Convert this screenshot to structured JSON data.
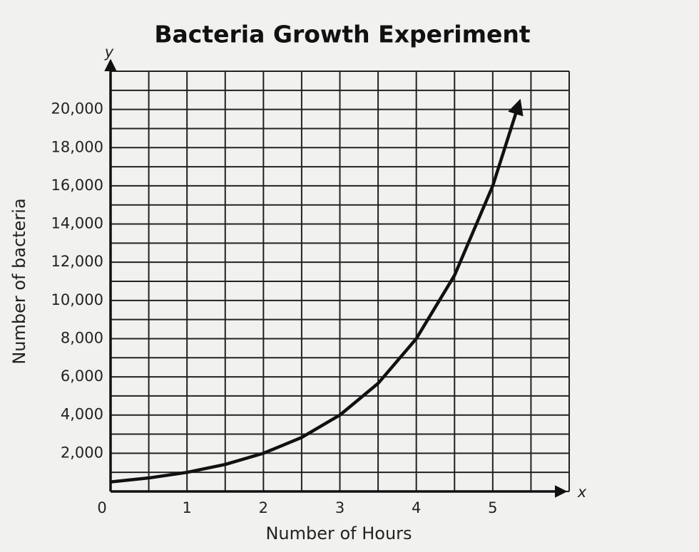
{
  "chart_data": {
    "type": "line",
    "title": "Bacteria Growth Experiment",
    "x_label": "Number of Hours",
    "y_label": "Number of bacteria",
    "x_axis_letter": "x",
    "y_axis_letter": "y",
    "x": [
      0,
      0.5,
      1,
      1.5,
      2,
      2.5,
      3,
      3.5,
      4,
      4.5,
      5,
      5.35
    ],
    "series": [
      {
        "name": "Bacteria",
        "color": "#111111",
        "values": [
          500,
          707,
          1000,
          1414,
          2000,
          2828,
          4000,
          5657,
          8000,
          11314,
          16000,
          20400
        ]
      }
    ],
    "xlim": [
      0,
      6
    ],
    "ylim": [
      0,
      22000
    ],
    "xticks": [
      0,
      1,
      2,
      3,
      4,
      5
    ],
    "yticks": [
      {
        "value": 2000,
        "label": "2,000"
      },
      {
        "value": 4000,
        "label": "4,000"
      },
      {
        "value": 6000,
        "label": "6,000"
      },
      {
        "value": 8000,
        "label": "8,000"
      },
      {
        "value": 10000,
        "label": "10,000"
      },
      {
        "value": 12000,
        "label": "12,000"
      },
      {
        "value": 14000,
        "label": "14,000"
      },
      {
        "value": 16000,
        "label": "16,000"
      },
      {
        "value": 18000,
        "label": "18,000"
      },
      {
        "value": 20000,
        "label": "20,000"
      }
    ],
    "x_gridlines": [
      0,
      0.5,
      1,
      1.5,
      2,
      2.5,
      3,
      3.5,
      4,
      4.5,
      5,
      5.5,
      6
    ],
    "y_gridlines": [
      0,
      1000,
      2000,
      3000,
      4000,
      5000,
      6000,
      7000,
      8000,
      9000,
      10000,
      11000,
      12000,
      13000,
      14000,
      15000,
      16000,
      17000,
      18000,
      19000,
      20000,
      21000,
      22000
    ],
    "grid": true
  }
}
